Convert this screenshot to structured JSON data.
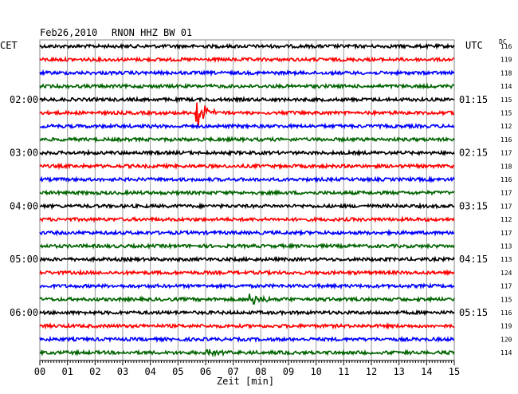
{
  "header": {
    "date": "Feb26,2010",
    "station": "RNON HHZ BW 01",
    "left_tz": "CET",
    "right_tz": "UTC",
    "dc_label": "DC"
  },
  "chart_data": {
    "type": "line",
    "title": "Feb26,2010   RNON HHZ BW 01",
    "xlabel": "Zeit [min]",
    "ylabel": "",
    "xlim": [
      0,
      15
    ],
    "x_ticks": [
      "00",
      "01",
      "02",
      "03",
      "04",
      "05",
      "06",
      "07",
      "08",
      "09",
      "10",
      "11",
      "12",
      "13",
      "14",
      "15"
    ],
    "grid": true,
    "trace_colors": [
      "#000000",
      "#ff0000",
      "#0000ff",
      "#006400"
    ],
    "rows": 24,
    "left_labels": [
      {
        "row": 4,
        "label": "02:00"
      },
      {
        "row": 8,
        "label": "03:00"
      },
      {
        "row": 12,
        "label": "04:00"
      },
      {
        "row": 16,
        "label": "05:00"
      },
      {
        "row": 20,
        "label": "06:00"
      }
    ],
    "right_labels": [
      {
        "row": 4,
        "label": "01:15"
      },
      {
        "row": 8,
        "label": "02:15"
      },
      {
        "row": 12,
        "label": "03:15"
      },
      {
        "row": 16,
        "label": "04:15"
      },
      {
        "row": 20,
        "label": "05:15"
      }
    ],
    "dc_values": [
      "116",
      "119",
      "118",
      "114",
      "115",
      "115",
      "112",
      "116",
      "117",
      "118",
      "116",
      "117",
      "117",
      "112",
      "117",
      "113",
      "113",
      "124",
      "117",
      "115",
      "116",
      "119",
      "120",
      "114"
    ],
    "events": [
      {
        "row": 5,
        "minute": 5.65,
        "amplitude": "large"
      },
      {
        "row": 19,
        "minute": 7.6,
        "amplitude": "medium"
      },
      {
        "row": 23,
        "minute": 6.0,
        "amplitude": "small"
      }
    ]
  }
}
